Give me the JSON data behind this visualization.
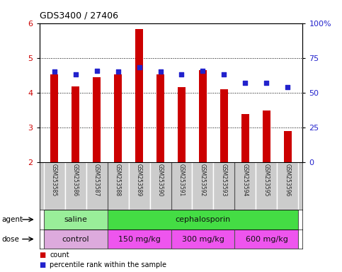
{
  "title": "GDS3400 / 27406",
  "samples": [
    "GSM253585",
    "GSM253586",
    "GSM253587",
    "GSM253588",
    "GSM253589",
    "GSM253590",
    "GSM253591",
    "GSM253592",
    "GSM253593",
    "GSM253594",
    "GSM253595",
    "GSM253596"
  ],
  "counts": [
    4.52,
    4.18,
    4.44,
    4.52,
    5.82,
    4.52,
    4.15,
    4.65,
    4.1,
    3.38,
    3.48,
    2.9
  ],
  "percentile_ranks_pct": [
    65.0,
    63.0,
    65.5,
    65.0,
    68.0,
    65.0,
    63.0,
    65.5,
    63.0,
    57.0,
    57.0,
    54.0
  ],
  "ylim": [
    2,
    6
  ],
  "yticks": [
    2,
    3,
    4,
    5,
    6
  ],
  "y2lim": [
    0,
    100
  ],
  "y2ticks": [
    0,
    25,
    50,
    75,
    100
  ],
  "y2labels": [
    "0",
    "25",
    "50",
    "75",
    "100%"
  ],
  "bar_color": "#cc0000",
  "dot_color": "#2222cc",
  "agent_groups": [
    {
      "label": "saline",
      "start": 0,
      "end": 3,
      "color": "#99ee99"
    },
    {
      "label": "cephalosporin",
      "start": 3,
      "end": 12,
      "color": "#44dd44"
    }
  ],
  "dose_groups": [
    {
      "label": "control",
      "start": 0,
      "end": 3,
      "color": "#ddaadd"
    },
    {
      "label": "150 mg/kg",
      "start": 3,
      "end": 6,
      "color": "#ee55ee"
    },
    {
      "label": "300 mg/kg",
      "start": 6,
      "end": 9,
      "color": "#ee55ee"
    },
    {
      "label": "600 mg/kg",
      "start": 9,
      "end": 12,
      "color": "#ee55ee"
    }
  ],
  "legend_count_color": "#cc0000",
  "legend_dot_color": "#2222cc",
  "tick_label_color_left": "#cc0000",
  "tick_label_color_right": "#2222cc",
  "background_plot": "#ffffff",
  "background_sample": "#cccccc"
}
